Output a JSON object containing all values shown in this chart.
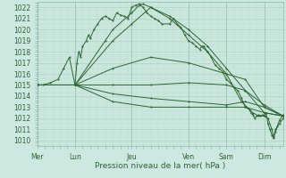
{
  "bg_color": "#cce8e0",
  "grid_color_major": "#aaccbb",
  "grid_color_minor": "#bbddcc",
  "line_color": "#2d6632",
  "xlabel": "Pression niveau de la mer( hPa )",
  "ylim": [
    1009.5,
    1022.5
  ],
  "yticks": [
    1010,
    1011,
    1012,
    1013,
    1014,
    1015,
    1016,
    1017,
    1018,
    1019,
    1020,
    1021,
    1022
  ],
  "xtick_labels": [
    "Mer",
    "Lun",
    "Jeu",
    "Ven",
    "Sam",
    "Dim"
  ],
  "xtick_positions": [
    0.0,
    1.0,
    2.5,
    4.0,
    5.0,
    6.0
  ],
  "vline_positions": [
    0.0,
    1.0,
    2.5,
    4.0,
    5.0,
    6.0
  ],
  "xlim": [
    0.0,
    6.5
  ],
  "lines": [
    [
      0.0,
      1015.0,
      0.15,
      1015.0,
      0.35,
      1015.2,
      0.55,
      1015.5,
      0.7,
      1016.5,
      0.85,
      1017.5,
      1.0,
      1015.0,
      1.05,
      1017.0,
      1.1,
      1018.0,
      1.15,
      1017.5,
      1.2,
      1018.5,
      1.3,
      1019.0,
      1.35,
      1019.5,
      1.4,
      1019.2,
      1.5,
      1020.0,
      1.6,
      1020.5,
      1.7,
      1021.0,
      1.8,
      1021.2,
      1.9,
      1021.0,
      2.0,
      1020.8,
      2.1,
      1021.5,
      2.2,
      1021.3,
      2.3,
      1021.2,
      2.4,
      1021.0,
      2.5,
      1022.0,
      2.6,
      1022.2,
      2.7,
      1022.3,
      2.8,
      1022.0,
      2.9,
      1021.5,
      3.0,
      1021.2,
      3.1,
      1021.0,
      3.2,
      1020.8,
      3.3,
      1020.5,
      3.5,
      1020.5,
      3.6,
      1021.0,
      3.7,
      1020.5,
      3.8,
      1020.2,
      3.9,
      1019.5,
      4.0,
      1019.0,
      4.1,
      1018.8,
      4.2,
      1018.5,
      4.3,
      1018.2,
      4.35,
      1018.5,
      4.4,
      1018.5,
      4.5,
      1018.0,
      4.6,
      1017.5,
      4.7,
      1016.8,
      4.8,
      1016.5,
      4.9,
      1016.2,
      5.0,
      1015.5,
      5.1,
      1015.2,
      5.2,
      1014.8,
      5.3,
      1014.5,
      5.4,
      1013.8,
      5.5,
      1013.0,
      5.6,
      1012.8,
      5.65,
      1012.5,
      5.7,
      1012.3,
      5.75,
      1012.0,
      5.8,
      1012.2,
      5.85,
      1012.3,
      5.9,
      1012.2,
      5.95,
      1012.3,
      6.0,
      1012.2,
      6.05,
      1012.5,
      6.1,
      1011.5,
      6.15,
      1011.0,
      6.2,
      1010.5,
      6.25,
      1010.2,
      6.3,
      1010.8,
      6.35,
      1011.3,
      6.4,
      1011.8,
      6.5,
      1012.3
    ],
    [
      0.0,
      1015.0,
      1.0,
      1015.0,
      1.8,
      1019.0,
      2.0,
      1020.0,
      2.5,
      1021.5,
      2.7,
      1022.2,
      2.8,
      1022.3,
      3.0,
      1022.0,
      3.5,
      1021.0,
      4.0,
      1019.5,
      4.5,
      1018.0,
      5.0,
      1016.0,
      5.4,
      1013.5,
      5.7,
      1012.5,
      5.85,
      1012.2,
      6.0,
      1012.2,
      6.1,
      1012.0,
      6.2,
      1011.0,
      6.25,
      1010.3,
      6.3,
      1011.0,
      6.4,
      1011.5,
      6.5,
      1012.0
    ],
    [
      0.0,
      1015.0,
      1.0,
      1015.0,
      2.0,
      1019.0,
      2.5,
      1020.5,
      3.0,
      1022.0,
      3.5,
      1021.2,
      4.0,
      1020.0,
      4.5,
      1018.5,
      5.0,
      1016.5,
      5.5,
      1014.5,
      6.0,
      1012.5,
      6.5,
      1012.2
    ],
    [
      0.0,
      1015.0,
      1.0,
      1015.0,
      2.0,
      1016.5,
      3.0,
      1017.5,
      4.0,
      1017.0,
      5.0,
      1016.0,
      5.5,
      1015.5,
      6.0,
      1013.0,
      6.5,
      1012.2
    ],
    [
      0.0,
      1015.0,
      1.0,
      1015.0,
      2.0,
      1015.0,
      3.0,
      1015.0,
      4.0,
      1015.2,
      5.0,
      1015.0,
      5.5,
      1014.5,
      6.0,
      1013.2,
      6.5,
      1012.2
    ],
    [
      0.0,
      1015.0,
      1.0,
      1015.0,
      2.0,
      1014.2,
      3.0,
      1013.8,
      4.0,
      1013.5,
      5.0,
      1013.2,
      5.5,
      1013.5,
      6.0,
      1013.0,
      6.5,
      1012.2
    ],
    [
      0.0,
      1015.0,
      1.0,
      1015.0,
      2.0,
      1013.5,
      3.0,
      1013.0,
      4.0,
      1013.0,
      5.0,
      1013.0,
      5.5,
      1013.0,
      6.0,
      1012.5,
      6.5,
      1012.2
    ]
  ]
}
